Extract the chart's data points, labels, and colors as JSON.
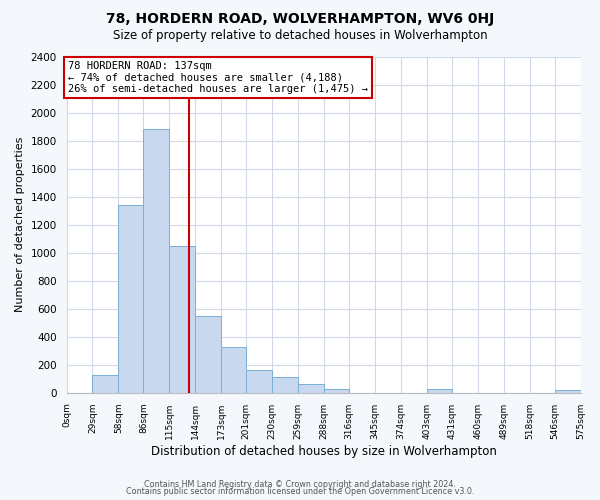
{
  "title": "78, HORDERN ROAD, WOLVERHAMPTON, WV6 0HJ",
  "subtitle": "Size of property relative to detached houses in Wolverhampton",
  "xlabel": "Distribution of detached houses by size in Wolverhampton",
  "ylabel": "Number of detached properties",
  "bin_edges": [
    0,
    29,
    58,
    86,
    115,
    144,
    173,
    201,
    230,
    259,
    288,
    316,
    345,
    374,
    403,
    431,
    460,
    489,
    518,
    546,
    575
  ],
  "bar_heights": [
    0,
    130,
    1340,
    1880,
    1050,
    550,
    330,
    160,
    110,
    60,
    30,
    0,
    0,
    0,
    25,
    0,
    0,
    0,
    0,
    20
  ],
  "bar_color": "#c8d8ee",
  "bar_edge_color": "#7aafd4",
  "vline_x": 137,
  "vline_color": "#cc0000",
  "annotation_title": "78 HORDERN ROAD: 137sqm",
  "annotation_line1": "← 74% of detached houses are smaller (4,188)",
  "annotation_line2": "26% of semi-detached houses are larger (1,475) →",
  "annotation_box_facecolor": "#ffffff",
  "annotation_box_edgecolor": "#cc0000",
  "ylim": [
    0,
    2400
  ],
  "yticks": [
    0,
    200,
    400,
    600,
    800,
    1000,
    1200,
    1400,
    1600,
    1800,
    2000,
    2200,
    2400
  ],
  "xtick_labels": [
    "0sqm",
    "29sqm",
    "58sqm",
    "86sqm",
    "115sqm",
    "144sqm",
    "173sqm",
    "201sqm",
    "230sqm",
    "259sqm",
    "288sqm",
    "316sqm",
    "345sqm",
    "374sqm",
    "403sqm",
    "431sqm",
    "460sqm",
    "489sqm",
    "518sqm",
    "546sqm",
    "575sqm"
  ],
  "grid_color": "#d0daea",
  "plot_bg_color": "#ffffff",
  "fig_bg_color": "#f4f7fc",
  "footer1": "Contains HM Land Registry data © Crown copyright and database right 2024.",
  "footer2": "Contains public sector information licensed under the Open Government Licence v3.0.",
  "title_fontsize": 10,
  "subtitle_fontsize": 8.5,
  "ylabel_fontsize": 8,
  "xlabel_fontsize": 8.5,
  "ytick_fontsize": 7.5,
  "xtick_fontsize": 6.5,
  "footer_fontsize": 5.8
}
